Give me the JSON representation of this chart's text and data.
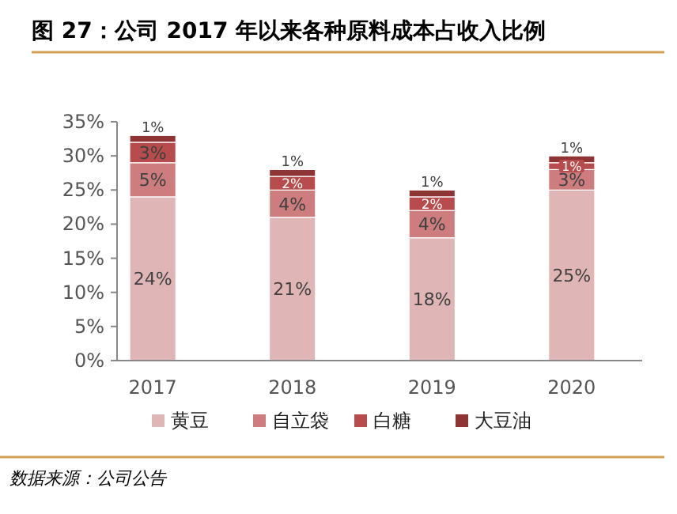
{
  "chart_data": {
    "type": "bar",
    "title": "图 27：公司 2017 年以来各种原料成本占收入比例",
    "categories": [
      "2017",
      "2018",
      "2019",
      "2020"
    ],
    "stacked": true,
    "series": [
      {
        "name": "黄豆",
        "color": "#e0b5b5",
        "values": [
          24,
          21,
          18,
          25
        ],
        "value_labels": [
          "24%",
          "21%",
          "18%",
          "25%"
        ]
      },
      {
        "name": "自立袋",
        "color": "#cd7d7d",
        "values": [
          5,
          4,
          4,
          3
        ],
        "value_labels": [
          "5%",
          "4%",
          "4%",
          "3%"
        ]
      },
      {
        "name": "白糖",
        "color": "#b84b4b",
        "values": [
          3,
          2,
          2,
          1
        ],
        "value_labels": [
          "3%",
          "2%",
          "2%",
          "1%"
        ]
      },
      {
        "name": "大豆油",
        "color": "#8e3434",
        "values": [
          1,
          1,
          1,
          1
        ],
        "value_labels": [
          "1%",
          "1%",
          "1%",
          "1%"
        ]
      }
    ],
    "ylim": [
      0,
      35
    ],
    "yticks": [
      {
        "value": 0,
        "label": "0%"
      },
      {
        "value": 5,
        "label": "5%"
      },
      {
        "value": 10,
        "label": "10%"
      },
      {
        "value": 15,
        "label": "15%"
      },
      {
        "value": 20,
        "label": "20%"
      },
      {
        "value": 25,
        "label": "25%"
      },
      {
        "value": 30,
        "label": "30%"
      },
      {
        "value": 35,
        "label": "35%"
      }
    ],
    "grid": false,
    "legend": "bottom",
    "annotations": [
      "数据来源：公司公告"
    ]
  }
}
